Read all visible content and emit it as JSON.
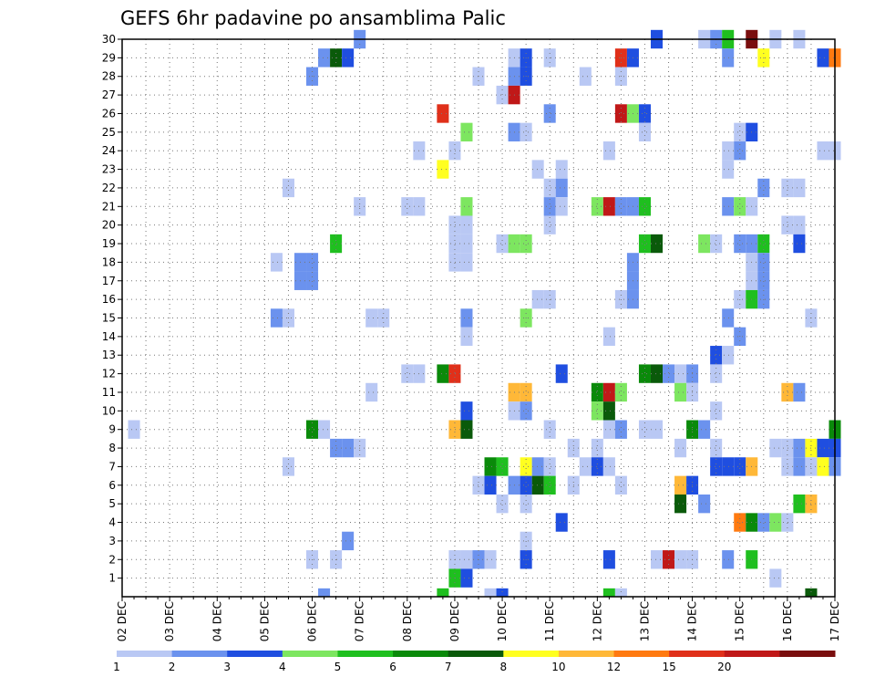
{
  "chart_data": {
    "type": "heatmap",
    "title": "GEFS 6hr padavine po ansamblima Palic",
    "x_tick_labels": [
      "02 DEC",
      "03 DEC",
      "04 DEC",
      "05 DEC",
      "06 DEC",
      "07 DEC",
      "08 DEC",
      "09 DEC",
      "10 DEC",
      "11 DEC",
      "12 DEC",
      "13 DEC",
      "14 DEC",
      "15 DEC",
      "16 DEC",
      "17 DEC"
    ],
    "y_tick_labels": [
      "1",
      "2",
      "3",
      "4",
      "5",
      "6",
      "7",
      "8",
      "9",
      "10",
      "11",
      "12",
      "13",
      "14",
      "15",
      "16",
      "17",
      "18",
      "19",
      "20",
      "21",
      "22",
      "23",
      "24",
      "25",
      "26",
      "27",
      "28",
      "29",
      "30"
    ],
    "x_range_6h_steps": [
      0,
      60
    ],
    "y_range_members": [
      0,
      30
    ],
    "grid": "dotted",
    "colorbar": {
      "position": "bottom",
      "labels": [
        "1",
        "2",
        "3",
        "4",
        "5",
        "6",
        "7",
        "8",
        "10",
        "12",
        "15",
        "20"
      ],
      "colors": [
        "#b9c8f4",
        "#6b92ee",
        "#1f4ee0",
        "#7de660",
        "#1fbf1f",
        "#0a8a0a",
        "#0a5a0a",
        "#ffff20",
        "#ffb838",
        "#ff7a10",
        "#e0301a",
        "#c01818",
        "#7a0e0e"
      ]
    },
    "cells": [
      {
        "member": 30,
        "t": 20,
        "level": 2
      },
      {
        "member": 30,
        "t": 45,
        "level": 3
      },
      {
        "member": 30,
        "t": 49,
        "level": 1
      },
      {
        "member": 30,
        "t": 50,
        "level": 2
      },
      {
        "member": 30,
        "t": 51,
        "level": 5
      },
      {
        "member": 30,
        "t": 53,
        "level": 13
      },
      {
        "member": 30,
        "t": 55,
        "level": 1
      },
      {
        "member": 30,
        "t": 57,
        "level": 1
      },
      {
        "member": 29,
        "t": 17,
        "level": 2
      },
      {
        "member": 29,
        "t": 18,
        "level": 7
      },
      {
        "member": 29,
        "t": 19,
        "level": 3
      },
      {
        "member": 29,
        "t": 33,
        "level": 1
      },
      {
        "member": 29,
        "t": 34,
        "level": 3
      },
      {
        "member": 29,
        "t": 36,
        "level": 1
      },
      {
        "member": 29,
        "t": 42,
        "level": 11
      },
      {
        "member": 29,
        "t": 43,
        "level": 3
      },
      {
        "member": 29,
        "t": 51,
        "level": 2
      },
      {
        "member": 29,
        "t": 54,
        "level": 8
      },
      {
        "member": 29,
        "t": 59,
        "level": 3
      },
      {
        "member": 29,
        "t": 60,
        "level": 10
      },
      {
        "member": 28,
        "t": 16,
        "level": 2
      },
      {
        "member": 28,
        "t": 30,
        "level": 1
      },
      {
        "member": 28,
        "t": 33,
        "level": 2
      },
      {
        "member": 28,
        "t": 34,
        "level": 3
      },
      {
        "member": 28,
        "t": 39,
        "level": 1
      },
      {
        "member": 28,
        "t": 42,
        "level": 1
      },
      {
        "member": 27,
        "t": 32,
        "level": 1
      },
      {
        "member": 27,
        "t": 33,
        "level": 12
      },
      {
        "member": 26,
        "t": 27,
        "level": 11
      },
      {
        "member": 26,
        "t": 36,
        "level": 2
      },
      {
        "member": 26,
        "t": 42,
        "level": 12
      },
      {
        "member": 26,
        "t": 43,
        "level": 4
      },
      {
        "member": 26,
        "t": 44,
        "level": 3
      },
      {
        "member": 25,
        "t": 29,
        "level": 4
      },
      {
        "member": 25,
        "t": 33,
        "level": 2
      },
      {
        "member": 25,
        "t": 34,
        "level": 1
      },
      {
        "member": 25,
        "t": 44,
        "level": 1
      },
      {
        "member": 25,
        "t": 52,
        "level": 1
      },
      {
        "member": 25,
        "t": 53,
        "level": 3
      },
      {
        "member": 24,
        "t": 25,
        "level": 1
      },
      {
        "member": 24,
        "t": 28,
        "level": 1
      },
      {
        "member": 24,
        "t": 41,
        "level": 1
      },
      {
        "member": 24,
        "t": 51,
        "level": 1
      },
      {
        "member": 24,
        "t": 52,
        "level": 2
      },
      {
        "member": 24,
        "t": 59,
        "level": 1
      },
      {
        "member": 24,
        "t": 60,
        "level": 1
      },
      {
        "member": 23,
        "t": 27,
        "level": 8
      },
      {
        "member": 23,
        "t": 35,
        "level": 1
      },
      {
        "member": 23,
        "t": 37,
        "level": 1
      },
      {
        "member": 23,
        "t": 51,
        "level": 1
      },
      {
        "member": 22,
        "t": 14,
        "level": 1
      },
      {
        "member": 22,
        "t": 36,
        "level": 1
      },
      {
        "member": 22,
        "t": 37,
        "level": 2
      },
      {
        "member": 22,
        "t": 54,
        "level": 2
      },
      {
        "member": 22,
        "t": 56,
        "level": 1
      },
      {
        "member": 22,
        "t": 57,
        "level": 1
      },
      {
        "member": 21,
        "t": 20,
        "level": 1
      },
      {
        "member": 21,
        "t": 24,
        "level": 1
      },
      {
        "member": 21,
        "t": 25,
        "level": 1
      },
      {
        "member": 21,
        "t": 29,
        "level": 4
      },
      {
        "member": 21,
        "t": 36,
        "level": 2
      },
      {
        "member": 21,
        "t": 37,
        "level": 1
      },
      {
        "member": 21,
        "t": 40,
        "level": 4
      },
      {
        "member": 21,
        "t": 41,
        "level": 12
      },
      {
        "member": 21,
        "t": 42,
        "level": 2
      },
      {
        "member": 21,
        "t": 43,
        "level": 2
      },
      {
        "member": 21,
        "t": 44,
        "level": 5
      },
      {
        "member": 21,
        "t": 51,
        "level": 2
      },
      {
        "member": 21,
        "t": 52,
        "level": 4
      },
      {
        "member": 21,
        "t": 53,
        "level": 1
      },
      {
        "member": 20,
        "t": 28,
        "level": 1
      },
      {
        "member": 20,
        "t": 29,
        "level": 1
      },
      {
        "member": 20,
        "t": 36,
        "level": 1
      },
      {
        "member": 20,
        "t": 56,
        "level": 1
      },
      {
        "member": 20,
        "t": 57,
        "level": 1
      },
      {
        "member": 19,
        "t": 28,
        "level": 1
      },
      {
        "member": 19,
        "t": 29,
        "level": 1
      },
      {
        "member": 19,
        "t": 18,
        "level": 5
      },
      {
        "member": 19,
        "t": 32,
        "level": 1
      },
      {
        "member": 19,
        "t": 33,
        "level": 4
      },
      {
        "member": 19,
        "t": 34,
        "level": 4
      },
      {
        "member": 19,
        "t": 44,
        "level": 5
      },
      {
        "member": 19,
        "t": 45,
        "level": 7
      },
      {
        "member": 19,
        "t": 49,
        "level": 4
      },
      {
        "member": 19,
        "t": 50,
        "level": 1
      },
      {
        "member": 19,
        "t": 52,
        "level": 2
      },
      {
        "member": 19,
        "t": 53,
        "level": 2
      },
      {
        "member": 19,
        "t": 54,
        "level": 5
      },
      {
        "member": 19,
        "t": 57,
        "level": 3
      },
      {
        "member": 18,
        "t": 28,
        "level": 1
      },
      {
        "member": 18,
        "t": 29,
        "level": 1
      },
      {
        "member": 18,
        "t": 13,
        "level": 1
      },
      {
        "member": 18,
        "t": 15,
        "level": 2
      },
      {
        "member": 18,
        "t": 16,
        "level": 2
      },
      {
        "member": 18,
        "t": 43,
        "level": 2
      },
      {
        "member": 18,
        "t": 53,
        "level": 1
      },
      {
        "member": 18,
        "t": 54,
        "level": 2
      },
      {
        "member": 17,
        "t": 15,
        "level": 2
      },
      {
        "member": 17,
        "t": 16,
        "level": 2
      },
      {
        "member": 17,
        "t": 43,
        "level": 2
      },
      {
        "member": 17,
        "t": 53,
        "level": 1
      },
      {
        "member": 17,
        "t": 54,
        "level": 2
      },
      {
        "member": 16,
        "t": 35,
        "level": 1
      },
      {
        "member": 16,
        "t": 36,
        "level": 1
      },
      {
        "member": 16,
        "t": 42,
        "level": 1
      },
      {
        "member": 16,
        "t": 43,
        "level": 2
      },
      {
        "member": 16,
        "t": 52,
        "level": 1
      },
      {
        "member": 16,
        "t": 53,
        "level": 5
      },
      {
        "member": 16,
        "t": 54,
        "level": 2
      },
      {
        "member": 15,
        "t": 13,
        "level": 2
      },
      {
        "member": 15,
        "t": 14,
        "level": 1
      },
      {
        "member": 15,
        "t": 21,
        "level": 1
      },
      {
        "member": 15,
        "t": 22,
        "level": 1
      },
      {
        "member": 15,
        "t": 29,
        "level": 2
      },
      {
        "member": 15,
        "t": 34,
        "level": 4
      },
      {
        "member": 15,
        "t": 51,
        "level": 2
      },
      {
        "member": 15,
        "t": 58,
        "level": 1
      },
      {
        "member": 14,
        "t": 29,
        "level": 1
      },
      {
        "member": 14,
        "t": 41,
        "level": 1
      },
      {
        "member": 14,
        "t": 52,
        "level": 2
      },
      {
        "member": 13,
        "t": 50,
        "level": 3
      },
      {
        "member": 13,
        "t": 51,
        "level": 1
      },
      {
        "member": 12,
        "t": 24,
        "level": 1
      },
      {
        "member": 12,
        "t": 25,
        "level": 1
      },
      {
        "member": 12,
        "t": 27,
        "level": 6
      },
      {
        "member": 12,
        "t": 28,
        "level": 11
      },
      {
        "member": 12,
        "t": 37,
        "level": 3
      },
      {
        "member": 12,
        "t": 44,
        "level": 6
      },
      {
        "member": 12,
        "t": 45,
        "level": 7
      },
      {
        "member": 12,
        "t": 46,
        "level": 2
      },
      {
        "member": 12,
        "t": 47,
        "level": 1
      },
      {
        "member": 12,
        "t": 48,
        "level": 2
      },
      {
        "member": 12,
        "t": 50,
        "level": 1
      },
      {
        "member": 11,
        "t": 21,
        "level": 1
      },
      {
        "member": 11,
        "t": 33,
        "level": 9
      },
      {
        "member": 11,
        "t": 34,
        "level": 9
      },
      {
        "member": 11,
        "t": 40,
        "level": 6
      },
      {
        "member": 11,
        "t": 41,
        "level": 12
      },
      {
        "member": 11,
        "t": 42,
        "level": 4
      },
      {
        "member": 11,
        "t": 47,
        "level": 4
      },
      {
        "member": 11,
        "t": 48,
        "level": 1
      },
      {
        "member": 11,
        "t": 56,
        "level": 9
      },
      {
        "member": 11,
        "t": 57,
        "level": 2
      },
      {
        "member": 10,
        "t": 29,
        "level": 3
      },
      {
        "member": 10,
        "t": 33,
        "level": 1
      },
      {
        "member": 10,
        "t": 34,
        "level": 2
      },
      {
        "member": 10,
        "t": 40,
        "level": 4
      },
      {
        "member": 10,
        "t": 41,
        "level": 7
      },
      {
        "member": 10,
        "t": 50,
        "level": 1
      },
      {
        "member": 9,
        "t": 1,
        "level": 1
      },
      {
        "member": 9,
        "t": 16,
        "level": 6
      },
      {
        "member": 9,
        "t": 17,
        "level": 1
      },
      {
        "member": 9,
        "t": 28,
        "level": 9
      },
      {
        "member": 9,
        "t": 29,
        "level": 7
      },
      {
        "member": 9,
        "t": 36,
        "level": 1
      },
      {
        "member": 9,
        "t": 41,
        "level": 1
      },
      {
        "member": 9,
        "t": 42,
        "level": 2
      },
      {
        "member": 9,
        "t": 44,
        "level": 1
      },
      {
        "member": 9,
        "t": 45,
        "level": 1
      },
      {
        "member": 9,
        "t": 48,
        "level": 6
      },
      {
        "member": 9,
        "t": 49,
        "level": 2
      },
      {
        "member": 9,
        "t": 60,
        "level": 6
      },
      {
        "member": 8,
        "t": 18,
        "level": 2
      },
      {
        "member": 8,
        "t": 19,
        "level": 2
      },
      {
        "member": 8,
        "t": 20,
        "level": 1
      },
      {
        "member": 8,
        "t": 38,
        "level": 1
      },
      {
        "member": 8,
        "t": 40,
        "level": 1
      },
      {
        "member": 8,
        "t": 47,
        "level": 1
      },
      {
        "member": 8,
        "t": 50,
        "level": 1
      },
      {
        "member": 8,
        "t": 55,
        "level": 1
      },
      {
        "member": 8,
        "t": 56,
        "level": 1
      },
      {
        "member": 8,
        "t": 57,
        "level": 2
      },
      {
        "member": 8,
        "t": 58,
        "level": 8
      },
      {
        "member": 8,
        "t": 59,
        "level": 3
      },
      {
        "member": 8,
        "t": 60,
        "level": 3
      },
      {
        "member": 7,
        "t": 14,
        "level": 1
      },
      {
        "member": 7,
        "t": 31,
        "level": 6
      },
      {
        "member": 7,
        "t": 32,
        "level": 5
      },
      {
        "member": 7,
        "t": 34,
        "level": 8
      },
      {
        "member": 7,
        "t": 35,
        "level": 2
      },
      {
        "member": 7,
        "t": 36,
        "level": 1
      },
      {
        "member": 7,
        "t": 39,
        "level": 1
      },
      {
        "member": 7,
        "t": 40,
        "level": 3
      },
      {
        "member": 7,
        "t": 41,
        "level": 1
      },
      {
        "member": 7,
        "t": 50,
        "level": 3
      },
      {
        "member": 7,
        "t": 51,
        "level": 3
      },
      {
        "member": 7,
        "t": 52,
        "level": 3
      },
      {
        "member": 7,
        "t": 53,
        "level": 9
      },
      {
        "member": 7,
        "t": 56,
        "level": 1
      },
      {
        "member": 7,
        "t": 57,
        "level": 2
      },
      {
        "member": 7,
        "t": 58,
        "level": 1
      },
      {
        "member": 7,
        "t": 59,
        "level": 8
      },
      {
        "member": 7,
        "t": 60,
        "level": 2
      },
      {
        "member": 6,
        "t": 30,
        "level": 1
      },
      {
        "member": 6,
        "t": 31,
        "level": 3
      },
      {
        "member": 6,
        "t": 33,
        "level": 2
      },
      {
        "member": 6,
        "t": 34,
        "level": 3
      },
      {
        "member": 6,
        "t": 35,
        "level": 7
      },
      {
        "member": 6,
        "t": 36,
        "level": 5
      },
      {
        "member": 6,
        "t": 38,
        "level": 1
      },
      {
        "member": 6,
        "t": 42,
        "level": 1
      },
      {
        "member": 6,
        "t": 47,
        "level": 9
      },
      {
        "member": 6,
        "t": 48,
        "level": 3
      },
      {
        "member": 5,
        "t": 32,
        "level": 1
      },
      {
        "member": 5,
        "t": 34,
        "level": 1
      },
      {
        "member": 5,
        "t": 47,
        "level": 7
      },
      {
        "member": 5,
        "t": 49,
        "level": 2
      },
      {
        "member": 5,
        "t": 57,
        "level": 5
      },
      {
        "member": 5,
        "t": 58,
        "level": 9
      },
      {
        "member": 4,
        "t": 37,
        "level": 3
      },
      {
        "member": 4,
        "t": 52,
        "level": 10
      },
      {
        "member": 4,
        "t": 53,
        "level": 6
      },
      {
        "member": 4,
        "t": 54,
        "level": 2
      },
      {
        "member": 4,
        "t": 55,
        "level": 4
      },
      {
        "member": 4,
        "t": 56,
        "level": 1
      },
      {
        "member": 3,
        "t": 19,
        "level": 2
      },
      {
        "member": 3,
        "t": 34,
        "level": 1
      },
      {
        "member": 2,
        "t": 16,
        "level": 1
      },
      {
        "member": 2,
        "t": 18,
        "level": 1
      },
      {
        "member": 2,
        "t": 28,
        "level": 1
      },
      {
        "member": 2,
        "t": 29,
        "level": 1
      },
      {
        "member": 2,
        "t": 30,
        "level": 2
      },
      {
        "member": 2,
        "t": 31,
        "level": 1
      },
      {
        "member": 2,
        "t": 34,
        "level": 3
      },
      {
        "member": 2,
        "t": 41,
        "level": 3
      },
      {
        "member": 2,
        "t": 45,
        "level": 1
      },
      {
        "member": 2,
        "t": 46,
        "level": 12
      },
      {
        "member": 2,
        "t": 47,
        "level": 1
      },
      {
        "member": 2,
        "t": 48,
        "level": 1
      },
      {
        "member": 2,
        "t": 51,
        "level": 2
      },
      {
        "member": 2,
        "t": 53,
        "level": 5
      },
      {
        "member": 1,
        "t": 28,
        "level": 5
      },
      {
        "member": 1,
        "t": 29,
        "level": 3
      },
      {
        "member": 1,
        "t": 55,
        "level": 1
      },
      {
        "member": 0,
        "t": 17,
        "level": 2
      },
      {
        "member": 0,
        "t": 27,
        "level": 5
      },
      {
        "member": 0,
        "t": 31,
        "level": 1
      },
      {
        "member": 0,
        "t": 32,
        "level": 3
      },
      {
        "member": 0,
        "t": 41,
        "level": 5
      },
      {
        "member": 0,
        "t": 42,
        "level": 1
      },
      {
        "member": 0,
        "t": 58,
        "level": 7
      }
    ]
  }
}
